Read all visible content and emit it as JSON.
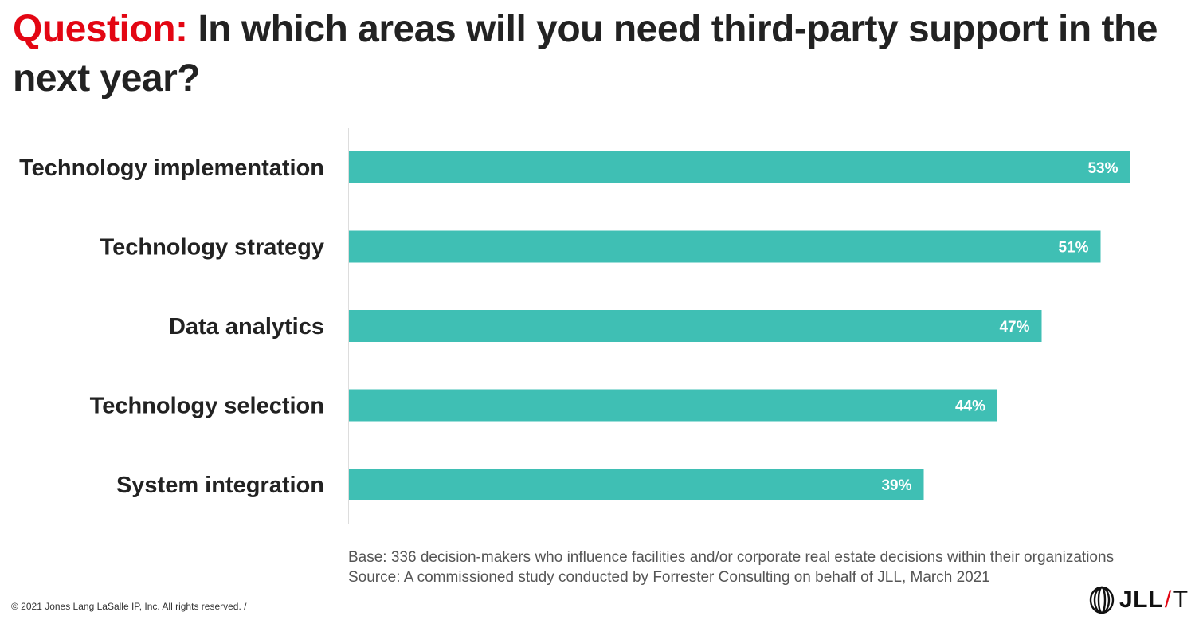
{
  "header": {
    "question_label": "Question:",
    "question_text": "In which areas will you need third-party support in the next year?"
  },
  "chart_data": {
    "type": "bar",
    "orientation": "horizontal",
    "categories": [
      "Technology implementation",
      "Technology strategy",
      "Data analytics",
      "Technology selection",
      "System integration"
    ],
    "values": [
      53,
      51,
      47,
      44,
      39
    ],
    "value_labels": [
      "53%",
      "51%",
      "47%",
      "44%",
      "39%"
    ],
    "unit": "%",
    "xlim": [
      0,
      54
    ],
    "grid": false,
    "bar_color": "#3fbfb4"
  },
  "footer": {
    "base_note": "Base: 336 decision-makers who influence facilities and/or corporate real estate decisions within their organizations",
    "source_note": "Source: A commissioned study conducted by Forrester Consulting on behalf of JLL, March 2021",
    "copyright": "© 2021 Jones Lang LaSalle IP, Inc. All rights reserved. /",
    "logo_text": "JLL",
    "logo_suffix": "T"
  },
  "colors": {
    "accent_red": "#e30613",
    "bar": "#3fbfb4",
    "text": "#222222"
  }
}
